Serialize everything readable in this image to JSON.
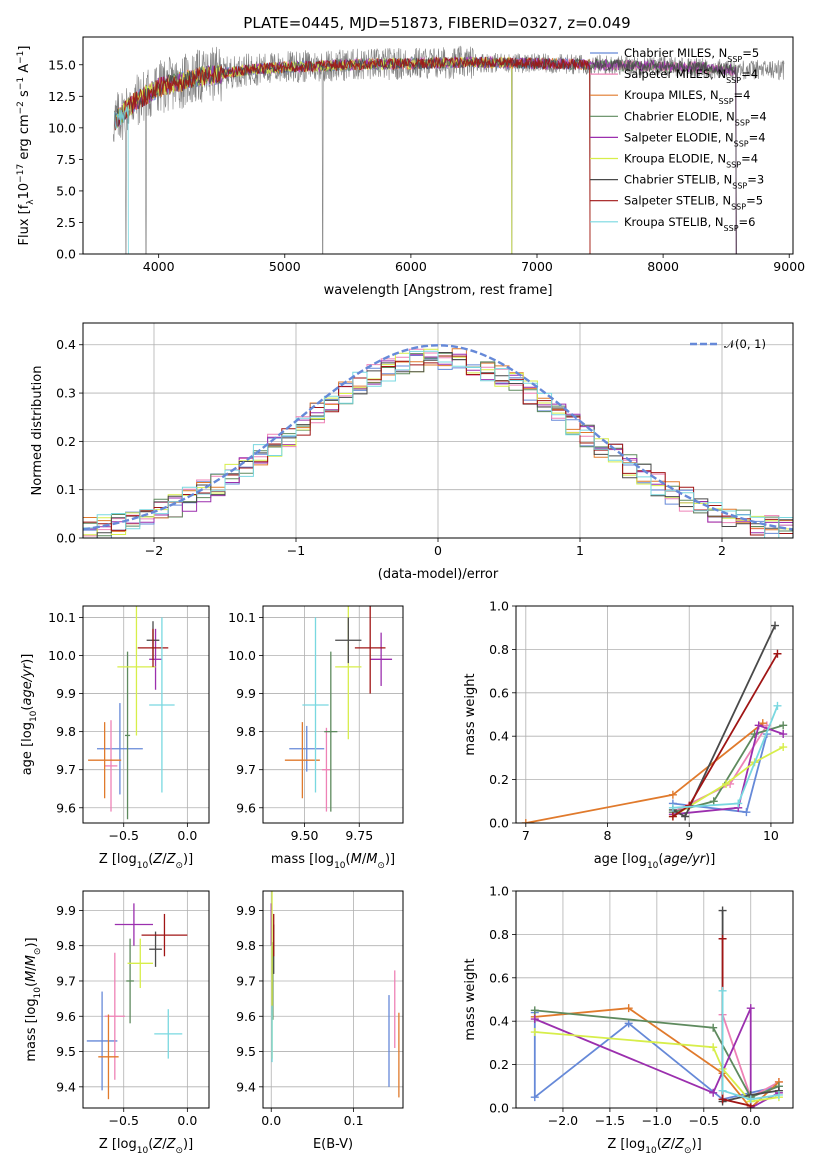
{
  "title": "PLATE=0445, MJD=51873, FIBERID=0327, z=0.049",
  "series": [
    {
      "name": "Chabrier MILES, N",
      "nssp": "5",
      "color": "#6689d8"
    },
    {
      "name": "Salpeter MILES, N",
      "nssp": "4",
      "color": "#ee82b6"
    },
    {
      "name": "Kroupa MILES, N",
      "nssp": "4",
      "color": "#e07a2c"
    },
    {
      "name": "Chabrier ELODIE, N",
      "nssp": "4",
      "color": "#5e8a5e"
    },
    {
      "name": "Salpeter ELODIE, N",
      "nssp": "4",
      "color": "#9b2fae"
    },
    {
      "name": "Kroupa ELODIE, N",
      "nssp": "4",
      "color": "#d7ee4a"
    },
    {
      "name": "Chabrier STELIB, N",
      "nssp": "3",
      "color": "#4a4a4a"
    },
    {
      "name": "Salpeter STELIB, N",
      "nssp": "5",
      "color": "#a01515"
    },
    {
      "name": "Kroupa STELIB, N",
      "nssp": "6",
      "color": "#79d8e0"
    }
  ],
  "legend_sub": "SSP",
  "chart_data": [
    {
      "id": "spectrum",
      "type": "line",
      "xlabel": "wavelength [Angstrom, rest frame]",
      "ylabel": "Flux [f_λ10^-17 erg cm^-2 s^-1 A^-1]",
      "xlim": [
        3400,
        9030
      ],
      "ylim": [
        0,
        17.2
      ],
      "xticks": [
        "4000",
        "5000",
        "6000",
        "7000",
        "8000",
        "9000"
      ],
      "yticks": [
        "0.0",
        "2.5",
        "5.0",
        "7.5",
        "10.0",
        "12.5",
        "15.0"
      ],
      "continuum": [
        [
          3650,
          10.5
        ],
        [
          3800,
          12.0
        ],
        [
          4000,
          13.2
        ],
        [
          4300,
          14.0
        ],
        [
          4700,
          14.6
        ],
        [
          5000,
          14.8
        ],
        [
          5500,
          15.0
        ],
        [
          6000,
          15.1
        ],
        [
          6500,
          15.2
        ],
        [
          7000,
          15.1
        ],
        [
          7500,
          15.0
        ],
        [
          8000,
          14.9
        ],
        [
          8600,
          14.6
        ]
      ],
      "data_range": [
        3640,
        8960
      ],
      "model_end_wavelengths": [
        7420,
        8580,
        7420,
        8580,
        8580,
        6800,
        8580,
        7420,
        3760
      ],
      "absorption_dips": [
        [
          3740,
          0
        ],
        [
          3900,
          0
        ],
        [
          5300,
          0
        ],
        [
          6800,
          0
        ],
        [
          7420,
          0
        ]
      ],
      "legend_position": "right"
    },
    {
      "id": "residuals",
      "type": "step",
      "xlabel": "(data-model)/error",
      "ylabel": "Normed distribution",
      "xlim": [
        -2.5,
        2.5
      ],
      "ylim": [
        0,
        0.445
      ],
      "xticks": [
        "−2",
        "−1",
        "0",
        "1",
        "2"
      ],
      "yticks": [
        "0.0",
        "0.1",
        "0.2",
        "0.3",
        "0.4"
      ],
      "bin_width": 0.1,
      "reference_curve": "N(0,1)",
      "reference_label": "𝒩(0, 1)",
      "legend_position": "top-right"
    },
    {
      "id": "age-vs-Z",
      "type": "errorbar",
      "xlabel": "Z [log10(Z/Z⊙)]",
      "ylabel": "age  [log10(age/yr)]",
      "xlim": [
        -0.82,
        0.17
      ],
      "ylim": [
        9.56,
        10.13
      ],
      "xticks": [
        "−0.5",
        "0.0"
      ],
      "yticks": [
        "9.6",
        "9.7",
        "9.8",
        "9.9",
        "10.0",
        "10.1"
      ],
      "points": [
        {
          "x": -0.53,
          "y": 9.755,
          "xerr": 0.18,
          "yerr": 0.12
        },
        {
          "x": -0.6,
          "y": 9.71,
          "xerr": 0.05,
          "yerr": 0.12
        },
        {
          "x": -0.65,
          "y": 9.725,
          "xerr": 0.13,
          "yerr": 0.1
        },
        {
          "x": -0.47,
          "y": 9.79,
          "xerr": 0.02,
          "yerr": 0.22
        },
        {
          "x": -0.25,
          "y": 9.99,
          "xerr": 0.05,
          "yerr": 0.08
        },
        {
          "x": -0.4,
          "y": 9.97,
          "xerr": 0.15,
          "yerr": 0.18
        },
        {
          "x": -0.27,
          "y": 10.04,
          "xerr": 0.05,
          "yerr": 0.05
        },
        {
          "x": -0.27,
          "y": 10.02,
          "xerr": 0.12,
          "yerr": 0.05
        },
        {
          "x": -0.2,
          "y": 9.87,
          "xerr": 0.1,
          "yerr": 0.23
        }
      ]
    },
    {
      "id": "age-vs-mass",
      "type": "errorbar",
      "xlabel": "mass [log10(M/M⊙)]",
      "ylabel": "",
      "xlim": [
        9.31,
        9.95
      ],
      "ylim": [
        9.56,
        10.13
      ],
      "xticks": [
        "9.50",
        "9.75"
      ],
      "yticks": [
        "9.6",
        "9.7",
        "9.8",
        "9.9",
        "10.0",
        "10.1"
      ],
      "points": [
        {
          "x": 9.51,
          "y": 9.755,
          "xerr": 0.08,
          "yerr": 0.06
        },
        {
          "x": 9.6,
          "y": 9.7,
          "xerr": 0.02,
          "yerr": 0.11
        },
        {
          "x": 9.49,
          "y": 9.725,
          "xerr": 0.08,
          "yerr": 0.1
        },
        {
          "x": 9.62,
          "y": 9.8,
          "xerr": 0.03,
          "yerr": 0.21
        },
        {
          "x": 9.85,
          "y": 9.99,
          "xerr": 0.05,
          "yerr": 0.07
        },
        {
          "x": 9.7,
          "y": 9.97,
          "xerr": 0.06,
          "yerr": 0.19
        },
        {
          "x": 9.7,
          "y": 10.04,
          "xerr": 0.06,
          "yerr": 0.06
        },
        {
          "x": 9.8,
          "y": 10.02,
          "xerr": 0.07,
          "yerr": 0.12
        },
        {
          "x": 9.55,
          "y": 9.87,
          "xerr": 0.06,
          "yerr": 0.23
        }
      ]
    },
    {
      "id": "massweight-vs-age",
      "type": "line",
      "xlabel": "age  [log10(age/yr)]",
      "ylabel": "mass weight",
      "xlim": [
        6.88,
        10.27
      ],
      "ylim": [
        0,
        1.0
      ],
      "xticks": [
        "7",
        "8",
        "9",
        "10"
      ],
      "yticks": [
        "0.0",
        "0.2",
        "0.4",
        "0.6",
        "0.8",
        "1.0"
      ],
      "lines": [
        [
          [
            8.8,
            0.09
          ],
          [
            9.7,
            0.05
          ],
          [
            9.95,
            0.41
          ]
        ],
        [
          [
            8.8,
            0.05
          ],
          [
            9.5,
            0.18
          ],
          [
            9.95,
            0.45
          ]
        ],
        [
          [
            7.0,
            0.0
          ],
          [
            8.8,
            0.13
          ],
          [
            9.9,
            0.46
          ]
        ],
        [
          [
            8.8,
            0.05
          ],
          [
            9.3,
            0.1
          ],
          [
            9.8,
            0.41
          ],
          [
            10.15,
            0.45
          ]
        ],
        [
          [
            8.8,
            0.04
          ],
          [
            9.6,
            0.07
          ],
          [
            9.85,
            0.45
          ],
          [
            10.15,
            0.41
          ]
        ],
        [
          [
            8.8,
            0.03
          ],
          [
            9.45,
            0.18
          ],
          [
            9.8,
            0.28
          ],
          [
            10.15,
            0.35
          ]
        ],
        [
          [
            8.8,
            0.06
          ],
          [
            8.95,
            0.03
          ],
          [
            10.05,
            0.91
          ]
        ],
        [
          [
            8.8,
            0.03
          ],
          [
            9.0,
            0.08
          ],
          [
            10.08,
            0.78
          ]
        ],
        [
          [
            8.8,
            0.07
          ],
          [
            9.6,
            0.09
          ],
          [
            10.08,
            0.54
          ]
        ]
      ]
    },
    {
      "id": "mass-vs-Z",
      "type": "errorbar",
      "xlabel": "Z [log10(Z/Z⊙)]",
      "ylabel": "mass [log10(M/M⊙)]",
      "xlim": [
        -0.82,
        0.17
      ],
      "ylim": [
        9.34,
        9.955
      ],
      "xticks": [
        "−0.5",
        "0.0"
      ],
      "yticks": [
        "9.4",
        "9.5",
        "9.6",
        "9.7",
        "9.8",
        "9.9"
      ],
      "points": [
        {
          "x": -0.67,
          "y": 9.53,
          "xerr": 0.12,
          "yerr": 0.14
        },
        {
          "x": -0.57,
          "y": 9.6,
          "xerr": 0.08,
          "yerr": 0.18
        },
        {
          "x": -0.62,
          "y": 9.485,
          "xerr": 0.08,
          "yerr": 0.12
        },
        {
          "x": -0.45,
          "y": 9.7,
          "xerr": 0.03,
          "yerr": 0.12
        },
        {
          "x": -0.42,
          "y": 9.86,
          "xerr": 0.15,
          "yerr": 0.06
        },
        {
          "x": -0.37,
          "y": 9.75,
          "xerr": 0.1,
          "yerr": 0.07
        },
        {
          "x": -0.25,
          "y": 9.79,
          "xerr": 0.05,
          "yerr": 0.05
        },
        {
          "x": -0.18,
          "y": 9.83,
          "xerr": 0.18,
          "yerr": 0.06
        },
        {
          "x": -0.15,
          "y": 9.55,
          "xerr": 0.11,
          "yerr": 0.07
        }
      ]
    },
    {
      "id": "mass-vs-ebv",
      "type": "errorbar",
      "xlabel": "E(B-V)",
      "ylabel": "",
      "xlim": [
        -0.01,
        0.16
      ],
      "ylim": [
        9.34,
        9.955
      ],
      "xticks": [
        "0.0",
        "0.1"
      ],
      "yticks": [
        "9.4",
        "9.5",
        "9.6",
        "9.7",
        "9.8",
        "9.9"
      ],
      "points": [
        {
          "x": 0.143,
          "y": 9.53,
          "xerr": 0,
          "yerr": 0.13
        },
        {
          "x": 0.15,
          "y": 9.62,
          "xerr": 0,
          "yerr": 0.11
        },
        {
          "x": 0.155,
          "y": 9.49,
          "xerr": 0,
          "yerr": 0.12
        },
        {
          "x": 0.002,
          "y": 9.7,
          "xerr": 0,
          "yerr": 0.11
        },
        {
          "x": 0.0,
          "y": 9.86,
          "xerr": 0,
          "yerr": 0.06
        },
        {
          "x": 0.001,
          "y": 9.74,
          "xerr": 0,
          "yerr": 0.26
        },
        {
          "x": 0.003,
          "y": 9.79,
          "xerr": 0,
          "yerr": 0.07
        },
        {
          "x": 0.003,
          "y": 9.83,
          "xerr": 0,
          "yerr": 0.06
        },
        {
          "x": 0.001,
          "y": 9.55,
          "xerr": 0,
          "yerr": 0.08
        }
      ]
    },
    {
      "id": "massweight-vs-Z",
      "type": "line",
      "xlabel": "Z [log10(Z/Z⊙)]",
      "ylabel": "mass weight",
      "xlim": [
        -2.5,
        0.45
      ],
      "ylim": [
        0,
        1.0
      ],
      "xticks": [
        "−2.0",
        "−1.5",
        "−1.0",
        "−0.5",
        "0.0"
      ],
      "yticks": [
        "0.0",
        "0.2",
        "0.4",
        "0.6",
        "0.8",
        "1.0"
      ],
      "lines": [
        [
          [
            -2.3,
            0.44
          ],
          [
            -2.3,
            0.05
          ],
          [
            -1.3,
            0.39
          ],
          [
            -0.3,
            0.04
          ],
          [
            0.3,
            0.1
          ]
        ],
        [
          [
            -0.3,
            0.43
          ],
          [
            0.0,
            0.05
          ],
          [
            0.3,
            0.12
          ]
        ],
        [
          [
            -2.3,
            0.42
          ],
          [
            -1.3,
            0.46
          ],
          [
            -0.3,
            0.16
          ],
          [
            0.0,
            0.0
          ],
          [
            0.3,
            0.12
          ]
        ],
        [
          [
            -2.3,
            0.45
          ],
          [
            -0.4,
            0.37
          ],
          [
            0.0,
            0.05
          ],
          [
            0.3,
            0.1
          ]
        ],
        [
          [
            -2.3,
            0.41
          ],
          [
            -0.4,
            0.07
          ],
          [
            0.0,
            0.46
          ],
          [
            0.0,
            0.0
          ],
          [
            0.3,
            0.07
          ]
        ],
        [
          [
            -2.3,
            0.35
          ],
          [
            -0.4,
            0.28
          ],
          [
            -0.3,
            0.18
          ],
          [
            0.0,
            0.03
          ],
          [
            0.3,
            0.05
          ]
        ],
        [
          [
            -0.3,
            0.91
          ],
          [
            -0.3,
            0.03
          ],
          [
            0.0,
            0.06
          ],
          [
            0.3,
            0.08
          ]
        ],
        [
          [
            -0.3,
            0.78
          ],
          [
            -0.3,
            0.04
          ],
          [
            0.0,
            0.01
          ]
        ],
        [
          [
            -0.3,
            0.54
          ],
          [
            -0.3,
            0.08
          ],
          [
            0.0,
            0.04
          ],
          [
            0.3,
            0.06
          ]
        ]
      ]
    }
  ]
}
